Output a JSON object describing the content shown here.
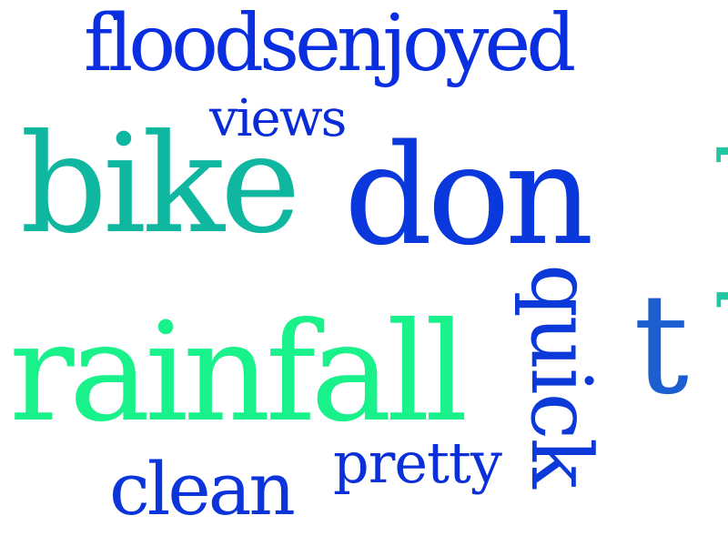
{
  "word_cloud": {
    "words": [
      {
        "key": "floodsenjoyed",
        "text": "floodsenjoyed",
        "color": "#0a2fe0"
      },
      {
        "key": "views",
        "text": "views",
        "color": "#0a2cd8"
      },
      {
        "key": "bike",
        "text": "bike",
        "color": "#10b7a0"
      },
      {
        "key": "don",
        "text": "don",
        "color": "#0a38dc"
      },
      {
        "key": "back",
        "text": "back",
        "color": "#22c7a2"
      },
      {
        "key": "quick",
        "text": "quick",
        "color": "#0c3ad8"
      },
      {
        "key": "t",
        "text": "t",
        "color": "#1a5ed0"
      },
      {
        "key": "rainfall",
        "text": "rainfall",
        "color": "#19f28a"
      },
      {
        "key": "clean",
        "text": "clean",
        "color": "#0b35da"
      },
      {
        "key": "pretty",
        "text": "pretty",
        "color": "#0b30da"
      }
    ]
  }
}
